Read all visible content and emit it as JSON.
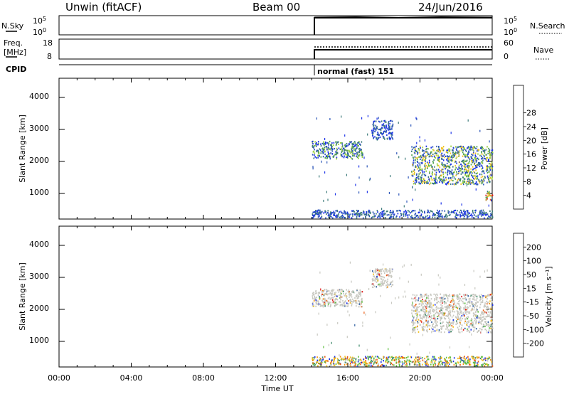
{
  "header": {
    "station": "Unwin (fitACF)",
    "beam": "Beam 00",
    "date": "24/Jun/2016"
  },
  "strips": {
    "nsky": {
      "left_label": "N.Sky",
      "left_ticks": [
        "10^5",
        "10^0"
      ],
      "right_ticks": [
        "10^5",
        "10^0"
      ],
      "right_label": "N.Search"
    },
    "freq": {
      "left_label_line1": "Freq.",
      "left_label_line2": "[MHz]",
      "left_ticks": [
        "18",
        "8"
      ],
      "right_ticks": [
        "60",
        "0"
      ],
      "right_label": "Nave"
    },
    "cpid": {
      "left_label": "CPID",
      "mode_text": "normal (fast) 151"
    }
  },
  "chart_data": [
    {
      "type": "heatmap",
      "panel": "power",
      "ylabel": "Slant Range [km]",
      "yticks": [
        1000,
        2000,
        3000,
        4000
      ],
      "ylim": [
        200,
        4600
      ],
      "xlim": [
        0,
        24
      ],
      "colorbar": {
        "label": "Power [dB]",
        "ticks": [
          "4",
          "8",
          "12",
          "16",
          "20",
          "24",
          "28"
        ],
        "colors": [
          "#1a30e8",
          "#2b55b8",
          "#3c7a7a",
          "#4da04d",
          "#9ad03a",
          "#f0c020",
          "#f09010",
          "#ec5a10",
          "#e01818"
        ]
      },
      "scatter_regions": [
        {
          "t": [
            14.0,
            16.8
          ],
          "range_km": [
            2100,
            2650
          ],
          "level": "mid"
        },
        {
          "t": [
            17.3,
            18.5
          ],
          "range_km": [
            2700,
            3300
          ],
          "level": "low"
        },
        {
          "t": [
            19.5,
            24.0
          ],
          "range_km": [
            1300,
            2500
          ],
          "level": "mid-high"
        },
        {
          "t": [
            14.0,
            24.0
          ],
          "range_km": [
            250,
            500
          ],
          "level": "low"
        },
        {
          "t": [
            23.6,
            24.0
          ],
          "range_km": [
            800,
            1100
          ],
          "level": "high"
        }
      ]
    },
    {
      "type": "heatmap",
      "panel": "velocity",
      "ylabel": "Slant Range [km]",
      "yticks": [
        1000,
        2000,
        3000,
        4000
      ],
      "ylim": [
        200,
        4600
      ],
      "xlim": [
        0,
        24
      ],
      "xlabel": "Time UT",
      "xticks": [
        "00:00",
        "04:00",
        "08:00",
        "12:00",
        "16:00",
        "20:00",
        "00:00"
      ],
      "colorbar": {
        "label": "Velocity [m s⁻¹]",
        "ticks": [
          "200",
          "100",
          "50",
          "15",
          "-15",
          "-50",
          "-100",
          "-200"
        ],
        "colors": [
          "#1a30e8",
          "#2e5fa0",
          "#3d8a6a",
          "#5fc040",
          "#c8c8c0",
          "#f0c020",
          "#f09010",
          "#ec5a10",
          "#e01818"
        ]
      },
      "scatter_regions": [
        {
          "t": [
            14.0,
            16.8
          ],
          "range_km": [
            2100,
            2650
          ],
          "level": "ground"
        },
        {
          "t": [
            17.3,
            18.5
          ],
          "range_km": [
            2700,
            3300
          ],
          "level": "ground"
        },
        {
          "t": [
            19.5,
            24.0
          ],
          "range_km": [
            1300,
            2500
          ],
          "level": "ground"
        },
        {
          "t": [
            14.0,
            24.0
          ],
          "range_km": [
            250,
            550
          ],
          "level": "mixed"
        }
      ]
    }
  ]
}
